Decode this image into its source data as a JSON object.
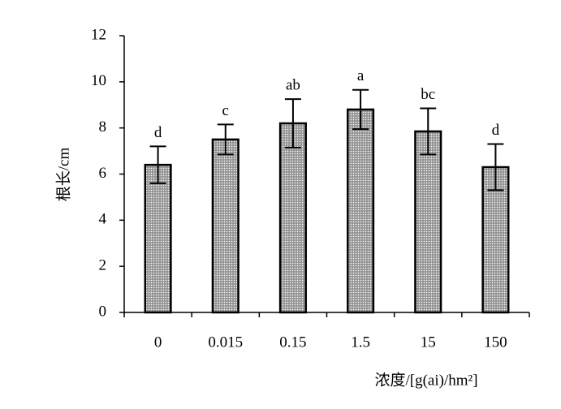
{
  "chart_data": {
    "type": "bar",
    "categories": [
      "0",
      "0.015",
      "0.15",
      "1.5",
      "15",
      "150"
    ],
    "values": [
      6.4,
      7.5,
      8.2,
      8.8,
      7.85,
      6.3
    ],
    "errors": [
      0.8,
      0.65,
      1.05,
      0.85,
      1.0,
      1.0
    ],
    "value_annotations": [
      "d",
      "c",
      "ab",
      "a",
      "bc",
      "d"
    ],
    "color": "#a8a8a8",
    "ylim": [
      0,
      12
    ],
    "yticks": [
      0,
      2,
      4,
      6,
      8,
      10,
      12
    ],
    "x_label": "浓度/[g(ai)/hm²]",
    "y_label": "根长/cm"
  }
}
